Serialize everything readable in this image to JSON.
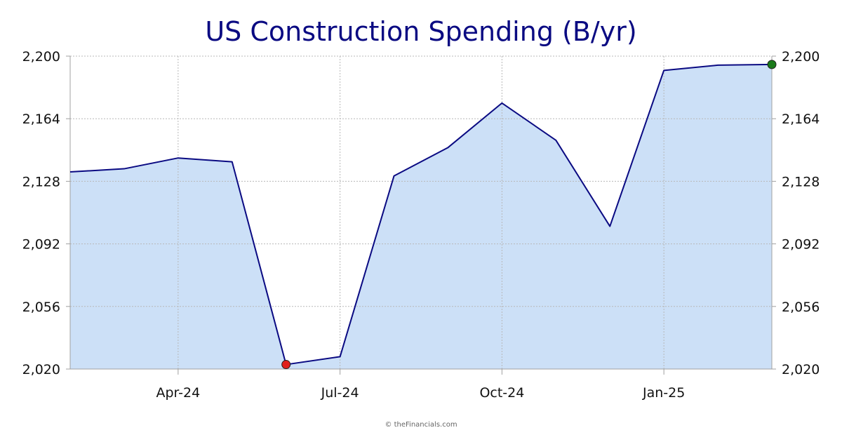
{
  "chart_data": {
    "type": "area",
    "title": "US Construction Spending (B/yr)",
    "xlabel": "",
    "ylabel": "",
    "x": [
      "2024-02",
      "2024-03",
      "2024-04",
      "2024-05",
      "2024-06",
      "2024-07",
      "2024-08",
      "2024-09",
      "2024-10",
      "2024-11",
      "2024-12",
      "2025-01",
      "2025-02",
      "2025-03"
    ],
    "x_ticks": [
      "Apr-24",
      "Jul-24",
      "Oct-24",
      "Jan-25"
    ],
    "x_tick_values": [
      "2024-04",
      "2024-07",
      "2024-10",
      "2025-01"
    ],
    "series": [
      {
        "values": [
          2133.4,
          2135.2,
          2141.4,
          2139.2,
          2022.6,
          2027.1,
          2131.1,
          2147.4,
          2173.0,
          2151.6,
          2102.1,
          2191.8,
          2194.8,
          2195.2
        ]
      }
    ],
    "y_ticks": [
      "2,020",
      "2,056",
      "2,092",
      "2,128",
      "2,164",
      "2,200"
    ],
    "y_tick_values": [
      2020,
      2056,
      2092,
      2128,
      2164,
      2200
    ],
    "ylim": [
      2020,
      2200
    ],
    "grid": true,
    "y_axis_both_sides": true,
    "min_marker_color": "#e0201c",
    "max_marker_color": "#1a7a1a",
    "line_color": "#0a0a82",
    "fill_color": "#cce0f7",
    "credit": "© theFinancials.com"
  }
}
